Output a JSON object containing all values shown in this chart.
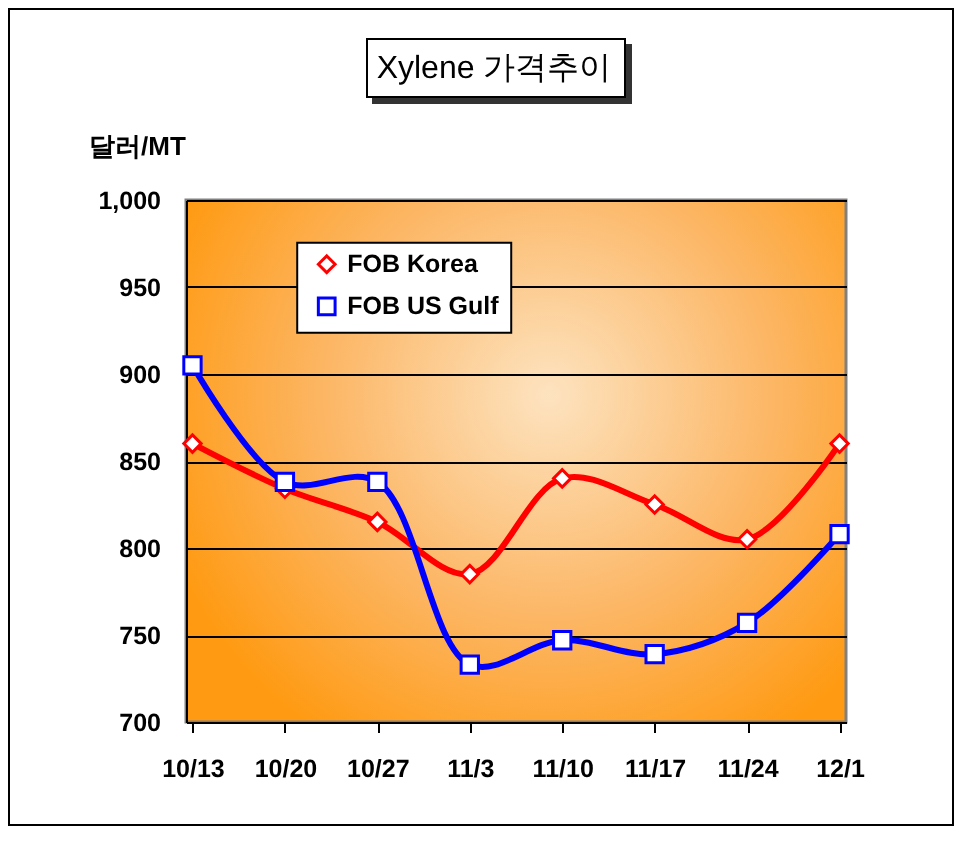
{
  "chart_data": {
    "type": "line",
    "title": "Xylene 가격추이",
    "ylabel": "달러/MT",
    "categories": [
      "10/13",
      "10/20",
      "10/27",
      "11/3",
      "11/10",
      "11/17",
      "11/24",
      "12/1"
    ],
    "series": [
      {
        "name": "FOB Korea",
        "color": "#ff0000",
        "marker": "diamond",
        "values": [
          860,
          834,
          815,
          785,
          840,
          825,
          805,
          860
        ]
      },
      {
        "name": "FOB US Gulf",
        "color": "#0000ff",
        "marker": "square",
        "values": [
          905,
          838,
          838,
          733,
          747,
          739,
          757,
          808
        ]
      }
    ],
    "ylim": [
      700,
      1000
    ],
    "yticks": [
      700,
      750,
      800,
      850,
      900,
      950,
      {
        "value": 1000,
        "label": "1,000"
      }
    ],
    "grid": "y",
    "legend": "top left",
    "line_style": "solid"
  }
}
